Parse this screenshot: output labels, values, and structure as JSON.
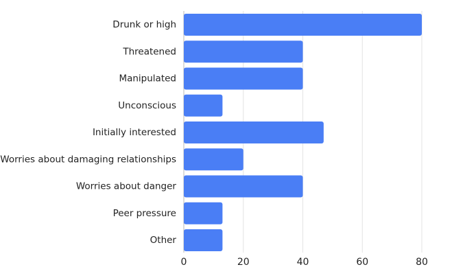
{
  "chart_data": {
    "type": "bar",
    "orientation": "horizontal",
    "categories": [
      "Drunk or high",
      "Threatened",
      "Manipulated",
      "Unconscious",
      "Initially interested",
      "Worries about damaging relationships",
      "Worries about danger",
      "Peer pressure",
      "Other"
    ],
    "values": [
      80,
      40,
      40,
      13,
      47,
      20,
      40,
      13,
      13
    ],
    "xticks": [
      0,
      20,
      40,
      60,
      80
    ],
    "xlim": [
      0,
      80
    ],
    "grid": true,
    "bar_color": "#4a7ef5",
    "title": "",
    "xlabel": "",
    "ylabel": ""
  }
}
